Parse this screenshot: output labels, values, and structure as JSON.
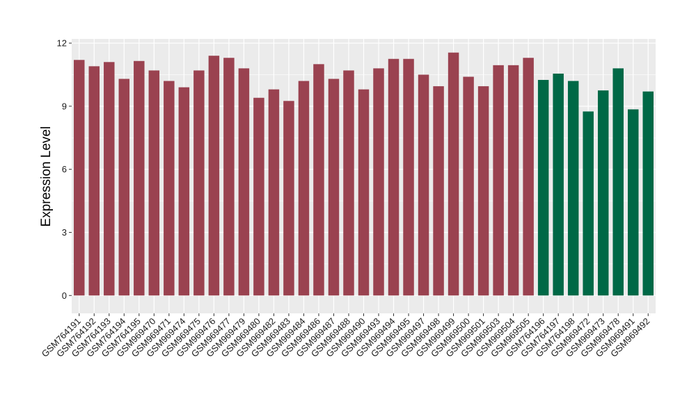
{
  "chart_data": {
    "type": "bar",
    "title": "",
    "xlabel": "",
    "ylabel": "Expression Level",
    "ylim": [
      -0.85,
      12.2
    ],
    "yticks": [
      0,
      3,
      6,
      9,
      12
    ],
    "grid": true,
    "legend": "none",
    "colors": {
      "group1": "#9a4250",
      "group2": "#006846",
      "panel": "#ebebeb",
      "grid": "#ffffff"
    },
    "categories": [
      "GSM764191",
      "GSM764192",
      "GSM764193",
      "GSM764194",
      "GSM764195",
      "GSM969470",
      "GSM969471",
      "GSM969474",
      "GSM969475",
      "GSM969476",
      "GSM969477",
      "GSM969479",
      "GSM969480",
      "GSM969482",
      "GSM969483",
      "GSM969484",
      "GSM969486",
      "GSM969487",
      "GSM969488",
      "GSM969490",
      "GSM969493",
      "GSM969494",
      "GSM969495",
      "GSM969497",
      "GSM969498",
      "GSM969499",
      "GSM969500",
      "GSM969501",
      "GSM969503",
      "GSM969504",
      "GSM969505",
      "GSM764196",
      "GSM764197",
      "GSM764198",
      "GSM969472",
      "GSM969473",
      "GSM969478",
      "GSM969491",
      "GSM969492"
    ],
    "values": [
      11.2,
      10.9,
      11.1,
      10.3,
      11.15,
      10.7,
      10.2,
      9.9,
      10.7,
      11.4,
      11.3,
      10.8,
      9.4,
      9.8,
      9.25,
      10.2,
      11.0,
      10.3,
      10.7,
      9.8,
      10.8,
      11.25,
      11.25,
      10.5,
      9.95,
      11.55,
      10.4,
      9.95,
      10.95,
      10.95,
      11.3,
      10.25,
      10.55,
      10.2,
      8.75,
      9.75,
      10.8,
      8.85,
      9.7
    ],
    "groups": [
      1,
      1,
      1,
      1,
      1,
      1,
      1,
      1,
      1,
      1,
      1,
      1,
      1,
      1,
      1,
      1,
      1,
      1,
      1,
      1,
      1,
      1,
      1,
      1,
      1,
      1,
      1,
      1,
      1,
      1,
      1,
      2,
      2,
      2,
      2,
      2,
      2,
      2,
      2
    ]
  }
}
